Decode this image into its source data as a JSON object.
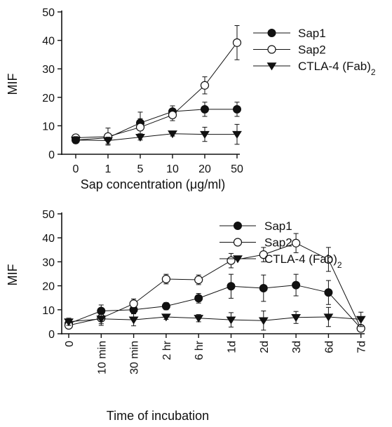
{
  "chart_data": [
    {
      "type": "line",
      "title": "",
      "ylabel": "MIF",
      "xlabel": "Sap concentration (μg/ml)",
      "categories": [
        "0",
        "1",
        "5",
        "10",
        "20",
        "50"
      ],
      "ylim": [
        0,
        50
      ],
      "yticks": [
        0,
        10,
        20,
        30,
        40,
        50
      ],
      "legend_position": "right",
      "series": [
        {
          "name": "Sap1",
          "marker": "filled-circle",
          "values": [
            5.0,
            5.8,
            11.0,
            15.0,
            15.8,
            15.8
          ],
          "errors": [
            1.0,
            1.2,
            3.8,
            2.0,
            2.5,
            2.5
          ]
        },
        {
          "name": "Sap2",
          "marker": "open-circle",
          "values": [
            5.8,
            6.2,
            9.5,
            13.8,
            24.2,
            39.2
          ],
          "errors": [
            0.8,
            3.0,
            3.0,
            2.0,
            3.0,
            6.0
          ]
        },
        {
          "name": "CTLA-4 (Fab)",
          "name_sub": "2",
          "marker": "filled-triangle-down",
          "values": [
            5.0,
            4.8,
            6.0,
            7.2,
            7.0,
            7.0
          ],
          "errors": [
            1.2,
            1.2,
            1.0,
            0.8,
            2.5,
            3.5
          ]
        }
      ]
    },
    {
      "type": "line",
      "title": "",
      "ylabel": "MIF",
      "xlabel": "Time of incubation",
      "categories": [
        "0",
        "10 min",
        "30 min",
        "2 hr",
        "6 hr",
        "1d",
        "2d",
        "3d",
        "6d",
        "7d"
      ],
      "ylim": [
        0,
        50
      ],
      "yticks": [
        0,
        10,
        20,
        30,
        40,
        50
      ],
      "legend_position": "right",
      "series": [
        {
          "name": "Sap1",
          "marker": "filled-circle",
          "values": [
            4.2,
            9.5,
            10.0,
            11.5,
            14.8,
            19.8,
            19.0,
            20.3,
            17.2,
            2.3
          ],
          "errors": [
            1.2,
            2.5,
            1.5,
            1.5,
            2.0,
            5.0,
            5.5,
            4.5,
            5.0,
            1.0
          ]
        },
        {
          "name": "Sap2",
          "marker": "open-circle",
          "values": [
            3.5,
            6.5,
            12.5,
            22.8,
            22.5,
            30.5,
            33.0,
            37.8,
            31.0,
            2.2
          ],
          "errors": [
            1.0,
            3.0,
            2.0,
            2.0,
            2.0,
            3.0,
            3.0,
            4.0,
            5.0,
            1.0
          ]
        },
        {
          "name": "CTLA-4 (Fab)",
          "name_sub": "2",
          "marker": "filled-triangle-down",
          "values": [
            5.0,
            6.2,
            5.8,
            7.0,
            6.5,
            5.8,
            5.5,
            6.8,
            7.0,
            6.0
          ],
          "errors": [
            1.5,
            2.0,
            2.5,
            1.0,
            1.5,
            3.0,
            4.0,
            2.5,
            4.0,
            3.0
          ]
        }
      ]
    }
  ]
}
